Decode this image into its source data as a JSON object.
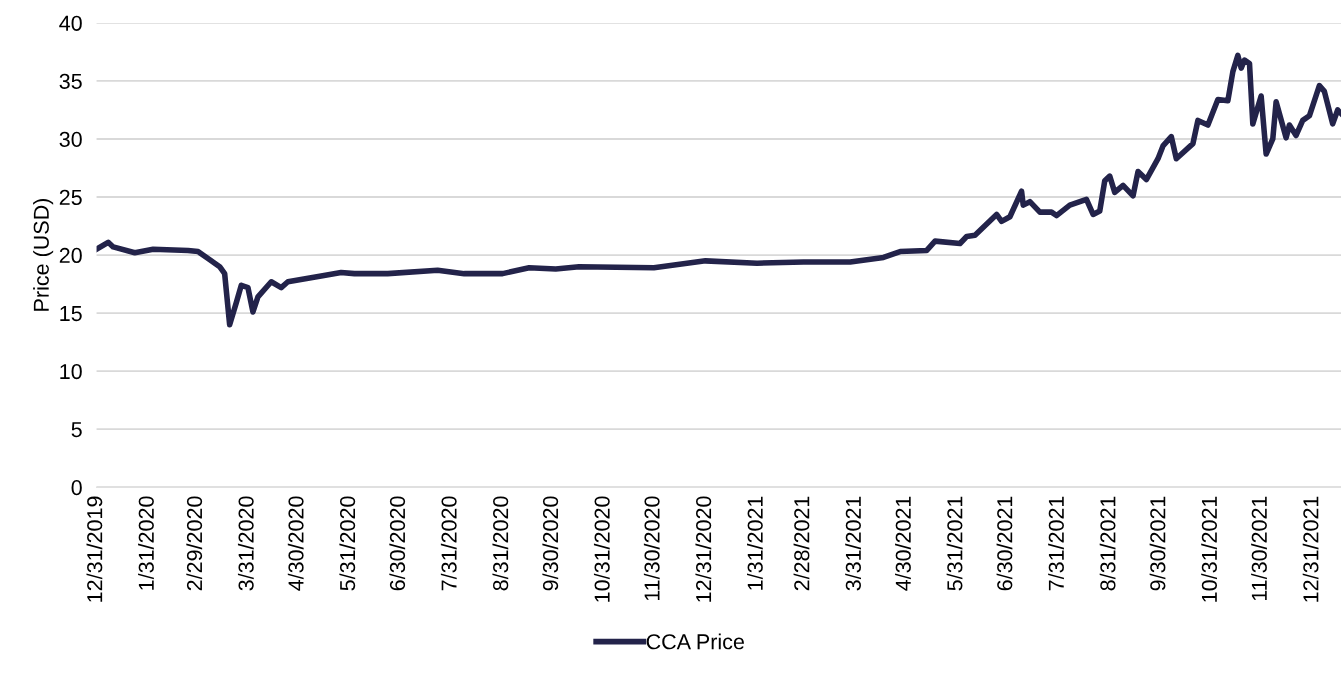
{
  "chart_data": {
    "type": "line",
    "ylabel": "Price (USD)",
    "x": [
      "2019-12-31",
      "2020-01-07",
      "2020-01-10",
      "2020-01-23",
      "2020-02-03",
      "2020-02-24",
      "2020-03-01",
      "2020-03-07",
      "2020-03-14",
      "2020-03-17",
      "2020-03-20",
      "2020-03-24",
      "2020-03-27",
      "2020-03-31",
      "2020-04-03",
      "2020-04-06",
      "2020-04-14",
      "2020-04-20",
      "2020-04-24",
      "2020-05-14",
      "2020-05-26",
      "2020-06-03",
      "2020-06-23",
      "2020-07-23",
      "2020-08-08",
      "2020-08-31",
      "2020-09-16",
      "2020-10-02",
      "2020-10-16",
      "2020-11-30",
      "2020-12-31",
      "2021-01-31",
      "2021-02-28",
      "2021-03-28",
      "2021-04-17",
      "2021-04-27",
      "2021-05-13",
      "2021-05-18",
      "2021-06-02",
      "2021-06-06",
      "2021-06-11",
      "2021-06-24",
      "2021-06-27",
      "2021-07-02",
      "2021-07-09",
      "2021-07-10",
      "2021-07-14",
      "2021-07-20",
      "2021-07-27",
      "2021-07-30",
      "2021-08-07",
      "2021-08-17",
      "2021-08-21",
      "2021-08-25",
      "2021-08-28",
      "2021-08-31",
      "2021-09-03",
      "2021-09-08",
      "2021-09-14",
      "2021-09-17",
      "2021-09-22",
      "2021-09-29",
      "2021-10-02",
      "2021-10-07",
      "2021-10-10",
      "2021-10-20",
      "2021-10-23",
      "2021-10-29",
      "2021-11-04",
      "2021-11-10",
      "2021-11-13",
      "2021-11-16",
      "2021-11-18",
      "2021-11-20",
      "2021-11-23",
      "2021-11-25",
      "2021-11-30",
      "2021-12-03",
      "2021-12-07",
      "2021-12-09",
      "2021-12-15",
      "2021-12-17",
      "2021-12-21",
      "2021-12-25",
      "2021-12-29",
      "2022-01-04",
      "2022-01-07",
      "2022-01-12",
      "2022-01-15",
      "2022-01-17"
    ],
    "series": [
      {
        "name": "CCA Price",
        "color": "#23234a",
        "values": [
          20.5,
          21.1,
          20.7,
          20.2,
          20.5,
          20.4,
          20.3,
          19.7,
          19.0,
          18.4,
          14.0,
          15.9,
          17.4,
          17.2,
          15.1,
          16.4,
          17.7,
          17.2,
          17.7,
          18.2,
          18.5,
          18.4,
          18.4,
          18.7,
          18.4,
          18.4,
          18.9,
          18.8,
          19.0,
          18.9,
          19.5,
          19.3,
          19.4,
          19.4,
          19.8,
          20.3,
          20.4,
          21.2,
          21.0,
          21.6,
          21.7,
          23.5,
          22.9,
          23.3,
          25.5,
          24.3,
          24.6,
          23.7,
          23.7,
          23.4,
          24.3,
          24.8,
          23.5,
          23.8,
          26.4,
          26.8,
          25.4,
          26.0,
          25.1,
          27.2,
          26.5,
          28.3,
          29.4,
          30.2,
          28.3,
          29.6,
          31.6,
          31.2,
          33.4,
          33.3,
          35.8,
          37.2,
          36.1,
          36.8,
          36.5,
          31.3,
          33.7,
          28.7,
          30.0,
          33.2,
          30.1,
          31.2,
          30.3,
          31.6,
          32.0,
          34.6,
          34.1,
          31.3,
          32.5,
          32.2
        ]
      }
    ],
    "xlim": [
      "2019-12-31",
      "2022-01-17"
    ],
    "xticks": [
      {
        "value": "2019-12-31",
        "label": "12/31/2019"
      },
      {
        "value": "2020-01-31",
        "label": "1/31/2020"
      },
      {
        "value": "2020-02-29",
        "label": "2/29/2020"
      },
      {
        "value": "2020-03-31",
        "label": "3/31/2020"
      },
      {
        "value": "2020-04-30",
        "label": "4/30/2020"
      },
      {
        "value": "2020-05-31",
        "label": "5/31/2020"
      },
      {
        "value": "2020-06-30",
        "label": "6/30/2020"
      },
      {
        "value": "2020-07-31",
        "label": "7/31/2020"
      },
      {
        "value": "2020-08-31",
        "label": "8/31/2020"
      },
      {
        "value": "2020-09-30",
        "label": "9/30/2020"
      },
      {
        "value": "2020-10-31",
        "label": "10/31/2020"
      },
      {
        "value": "2020-11-30",
        "label": "11/30/2020"
      },
      {
        "value": "2020-12-31",
        "label": "12/31/2020"
      },
      {
        "value": "2021-01-31",
        "label": "1/31/2021"
      },
      {
        "value": "2021-02-28",
        "label": "2/28/2021"
      },
      {
        "value": "2021-03-31",
        "label": "3/31/2021"
      },
      {
        "value": "2021-04-30",
        "label": "4/30/2021"
      },
      {
        "value": "2021-05-31",
        "label": "5/31/2021"
      },
      {
        "value": "2021-06-30",
        "label": "6/30/2021"
      },
      {
        "value": "2021-07-31",
        "label": "7/31/2021"
      },
      {
        "value": "2021-08-31",
        "label": "8/31/2021"
      },
      {
        "value": "2021-09-30",
        "label": "9/30/2021"
      },
      {
        "value": "2021-10-31",
        "label": "10/31/2021"
      },
      {
        "value": "2021-11-30",
        "label": "11/30/2021"
      },
      {
        "value": "2021-12-31",
        "label": "12/31/2021"
      }
    ],
    "ylim": [
      0,
      40
    ],
    "yticks": [
      0,
      5,
      10,
      15,
      20,
      25,
      30,
      35,
      40
    ],
    "grid": "y",
    "legend": "bottom",
    "marker": "none",
    "line_style": "solid"
  }
}
